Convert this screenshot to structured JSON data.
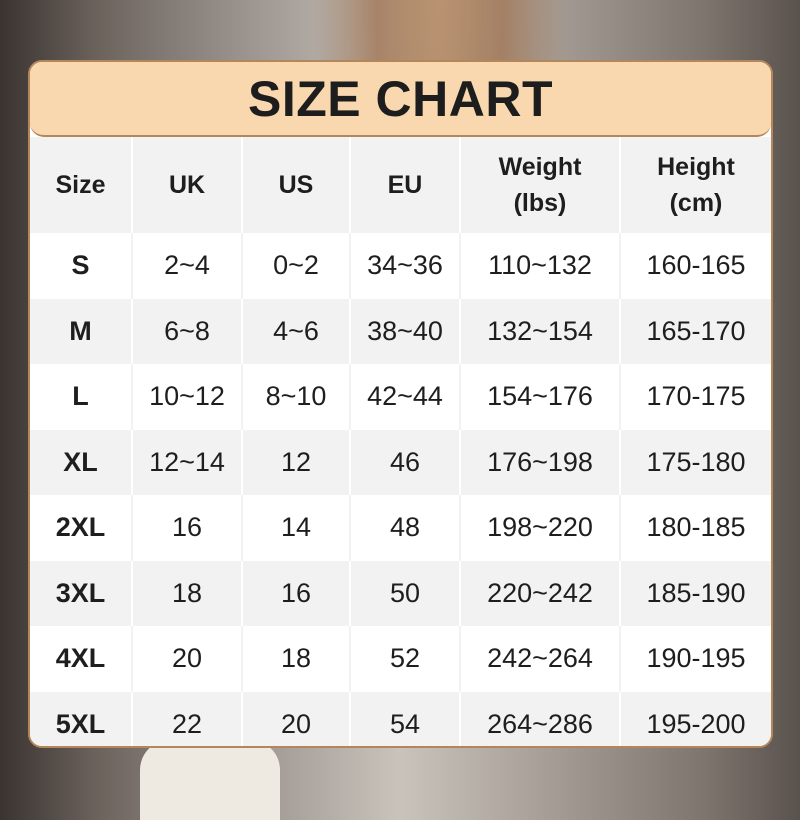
{
  "title": "SIZE CHART",
  "colors": {
    "header_band": "#f9d8b0",
    "border": "#b4875a",
    "row_alt": "#f2f2f2"
  },
  "columns": [
    {
      "line1": "Size",
      "line2": ""
    },
    {
      "line1": "UK",
      "line2": ""
    },
    {
      "line1": "US",
      "line2": ""
    },
    {
      "line1": "EU",
      "line2": ""
    },
    {
      "line1": "Weight",
      "line2": "(lbs)"
    },
    {
      "line1": "Height",
      "line2": "(cm)"
    }
  ],
  "rows": [
    [
      "S",
      "2~4",
      "0~2",
      "34~36",
      "110~132",
      "160-165"
    ],
    [
      "M",
      "6~8",
      "4~6",
      "38~40",
      "132~154",
      "165-170"
    ],
    [
      "L",
      "10~12",
      "8~10",
      "42~44",
      "154~176",
      "170-175"
    ],
    [
      "XL",
      "12~14",
      "12",
      "46",
      "176~198",
      "175-180"
    ],
    [
      "2XL",
      "16",
      "14",
      "48",
      "198~220",
      "180-185"
    ],
    [
      "3XL",
      "18",
      "16",
      "50",
      "220~242",
      "185-190"
    ],
    [
      "4XL",
      "20",
      "18",
      "52",
      "242~264",
      "190-195"
    ],
    [
      "5XL",
      "22",
      "20",
      "54",
      "264~286",
      "195-200"
    ]
  ]
}
